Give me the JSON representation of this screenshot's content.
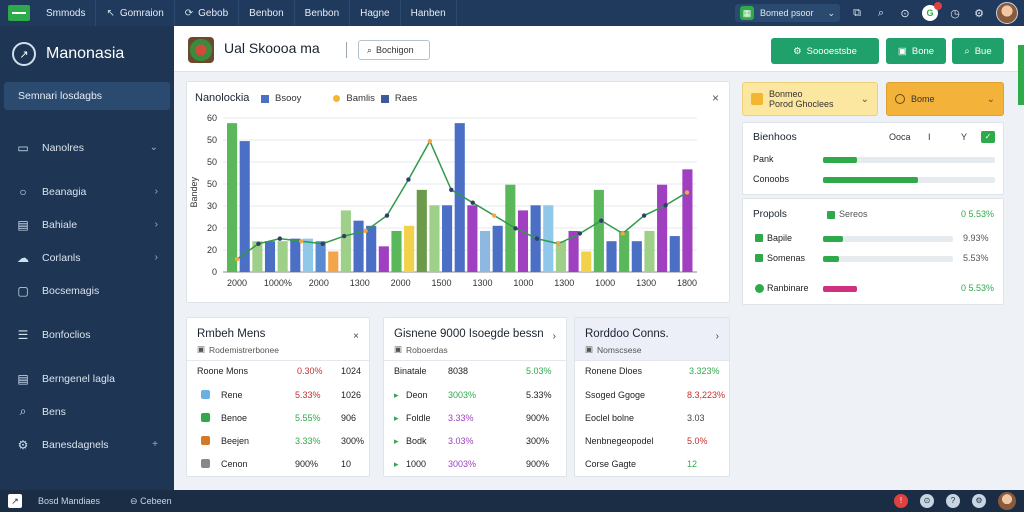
{
  "topbar": {
    "tabs": [
      {
        "label": "Smmods",
        "icon": "grid-icon"
      },
      {
        "label": "Gomraion",
        "icon": "arrow-icon"
      },
      {
        "label": "Gebob",
        "icon": "refresh-icon"
      },
      {
        "label": "Benbon",
        "icon": "none"
      },
      {
        "label": "Benbon",
        "icon": "none"
      },
      {
        "label": "Hagne",
        "icon": "none"
      },
      {
        "label": "Hanben",
        "icon": "none"
      }
    ],
    "search_label": "Bomed psoor",
    "badge_label": "G"
  },
  "sidebar": {
    "brand": "Manonasia",
    "search": "Semnari losdagbs",
    "items": [
      {
        "label": "Nanolres",
        "icon": "document-icon",
        "chevron": "⌄"
      },
      {
        "label": "Beanagia",
        "icon": "circle-icon",
        "chevron": "›"
      },
      {
        "label": "Bahiale",
        "icon": "table-icon",
        "chevron": "›"
      },
      {
        "label": "Corlanls",
        "icon": "cloud-icon",
        "chevron": "›"
      },
      {
        "label": "Bocsemagis",
        "icon": "chat-icon",
        "chevron": ""
      },
      {
        "label": "Bonfoclios",
        "icon": "menu-icon",
        "chevron": ""
      },
      {
        "label": "Berngenel lagla",
        "icon": "list-icon",
        "chevron": ""
      },
      {
        "label": "Bens",
        "icon": "search-icon",
        "chevron": ""
      },
      {
        "label": "Banesdagnels",
        "icon": "settings-icon",
        "chevron": "+"
      }
    ]
  },
  "header": {
    "title": "Ual Skoooa ma",
    "filter_label": "Bochigon",
    "actions": [
      {
        "label": "Soooestsbe",
        "color": "#20a06a"
      },
      {
        "label": "Bone",
        "color": "#20a06a"
      },
      {
        "label": "Bue",
        "color": "#20a06a"
      }
    ]
  },
  "chart_card": {
    "title": "Nanolockia",
    "close": "×"
  },
  "chart_data": {
    "type": "bar",
    "title": "Nanolockia",
    "ylabel": "Bandey",
    "legend": [
      "Bsooy",
      "Bamlis",
      "Raes"
    ],
    "legend_colors": [
      "#4a6fc4",
      "#f2b632",
      "#3a5a9a"
    ],
    "ylim": [
      0,
      60
    ],
    "yticks": [
      "0",
      "20",
      "20",
      "30",
      "50",
      "50",
      "50",
      "60"
    ],
    "xticks": [
      "2000",
      "1000%",
      "2000",
      "1300",
      "2000",
      "1500",
      "1300",
      "1000",
      "1300",
      "1000",
      "1300",
      "1800"
    ],
    "bars": [
      {
        "v": 58,
        "c": "#5ab85a"
      },
      {
        "v": 51,
        "c": "#4a6fc4"
      },
      {
        "v": 12,
        "c": "#9fd08a"
      },
      {
        "v": 12,
        "c": "#4a6fc4"
      },
      {
        "v": 12,
        "c": "#9fd08a"
      },
      {
        "v": 13,
        "c": "#4a6fc4"
      },
      {
        "v": 13,
        "c": "#8fc8e8"
      },
      {
        "v": 12,
        "c": "#5a8ad0"
      },
      {
        "v": 8,
        "c": "#f2a54a"
      },
      {
        "v": 24,
        "c": "#9fd08a"
      },
      {
        "v": 20,
        "c": "#4a6fc4"
      },
      {
        "v": 18,
        "c": "#4a6fc4"
      },
      {
        "v": 10,
        "c": "#a040c0"
      },
      {
        "v": 16,
        "c": "#5ab85a"
      },
      {
        "v": 18,
        "c": "#f2d24a"
      },
      {
        "v": 32,
        "c": "#6a9a4a"
      },
      {
        "v": 26,
        "c": "#9fd08a"
      },
      {
        "v": 26,
        "c": "#4a6fc4"
      },
      {
        "v": 58,
        "c": "#4a6fc4"
      },
      {
        "v": 26,
        "c": "#a040c0"
      },
      {
        "v": 16,
        "c": "#8fb8e0"
      },
      {
        "v": 18,
        "c": "#4a6fc4"
      },
      {
        "v": 34,
        "c": "#5ab85a"
      },
      {
        "v": 24,
        "c": "#a040c0"
      },
      {
        "v": 26,
        "c": "#4a6fc4"
      },
      {
        "v": 26,
        "c": "#8fc8e8"
      },
      {
        "v": 12,
        "c": "#9fd08a"
      },
      {
        "v": 16,
        "c": "#a040c0"
      },
      {
        "v": 8,
        "c": "#f2d24a"
      },
      {
        "v": 32,
        "c": "#5ab85a"
      },
      {
        "v": 12,
        "c": "#4a6fc4"
      },
      {
        "v": 16,
        "c": "#5ab85a"
      },
      {
        "v": 12,
        "c": "#4a6fc4"
      },
      {
        "v": 16,
        "c": "#9fd08a"
      },
      {
        "v": 34,
        "c": "#a040c0"
      },
      {
        "v": 14,
        "c": "#4a6fc4"
      },
      {
        "v": 40,
        "c": "#a040c0"
      }
    ],
    "line": [
      5,
      11,
      13,
      12,
      11,
      14,
      16,
      22,
      36,
      51,
      32,
      27,
      22,
      17,
      13,
      11,
      15,
      20,
      15,
      22,
      26,
      31
    ],
    "line_color": "#2f9a4a"
  },
  "table_a": {
    "title": "Rmbeh Mens",
    "subtitle": "Rodemistrerbonee",
    "close": "×",
    "header": [
      "Roone Mons",
      "0.30%",
      "1024"
    ],
    "rows": [
      {
        "icon_color": "#6ab0e0",
        "c1": "Rene",
        "c2": "5.33%",
        "c3": "1026",
        "c2_color": "#c03030"
      },
      {
        "icon_color": "#2faa4a",
        "c1": "Benoe",
        "c2": "5.55%",
        "c3": "906",
        "c2_color": "#2faa4a"
      },
      {
        "icon_color": "#d07a2a",
        "c1": "Beejen",
        "c2": "3.33%",
        "c3": "300%",
        "c2_color": "#2faa4a"
      },
      {
        "icon_color": "#888888",
        "c1": "Cenon",
        "c2": "900%",
        "c3": "10",
        "c2_color": "#222222"
      }
    ]
  },
  "table_b": {
    "title": "Gisnene 9000 Isoegde bessn",
    "subtitle": "Roboerdas",
    "close": "›",
    "header": [
      "Binatale",
      "8038",
      "5.03%"
    ],
    "rows": [
      {
        "c1": "Deon",
        "c2": "3003%",
        "c3": "5.33%",
        "c2_color": "#2faa4a"
      },
      {
        "c1": "Foldle",
        "c2": "3.33%",
        "c3": "900%",
        "c2_color": "#a040c0"
      },
      {
        "c1": "Bodk",
        "c2": "3.03%",
        "c3": "300%",
        "c2_color": "#a040c0"
      },
      {
        "c1": "1000",
        "c2": "3003%",
        "c3": "900%",
        "c2_color": "#a040c0"
      }
    ]
  },
  "table_c": {
    "title": "Rorddoo Conns.",
    "subtitle": "Nomscsese",
    "close": "›",
    "header": [
      "Ronene Dloes",
      "3.323%",
      ""
    ],
    "rows": [
      {
        "c1": "Ssoged Ggoge",
        "c2": "8.3,223%",
        "c2_color": "#c03030"
      },
      {
        "c1": "Eoclel bolne",
        "c2": "3.03",
        "c2_color": "#444444"
      },
      {
        "c1": "Nenbnegeopodel",
        "c2": "5.0%",
        "c2_color": "#c03030"
      },
      {
        "c1": "Corse Gagte",
        "c2": "12",
        "c2_color": "#2faa4a"
      }
    ]
  },
  "right": {
    "sel1_title": "Bonmeo",
    "sel1_sub": "Porod Ghoclees",
    "sel2_label": "Bome",
    "panel1": {
      "title": "Bienhoos",
      "tools": [
        "Ooca",
        "I",
        "Y"
      ],
      "rows": [
        {
          "label": "Pank",
          "pct": 0.2,
          "color": "#2faa4a"
        },
        {
          "label": "Conoobs",
          "pct": 0.55,
          "color": "#2faa4a"
        }
      ]
    },
    "panel2": {
      "title": "Propols",
      "head_label": "Sereos",
      "head_value": "0 5.53%",
      "rows": [
        {
          "label": "Bapile",
          "pct": 0.15,
          "value": "9.93%",
          "color": "#2faa4a"
        },
        {
          "label": "Somenas",
          "pct": 0.12,
          "value": "5.53%",
          "color": "#2faa4a"
        }
      ],
      "foot_label": "Ranbinare",
      "foot_value": "0 5.53%",
      "foot_color": "#d03080"
    }
  },
  "statusbar": {
    "left1": "Bosd Mandiaes",
    "left2": "Cebeen"
  }
}
